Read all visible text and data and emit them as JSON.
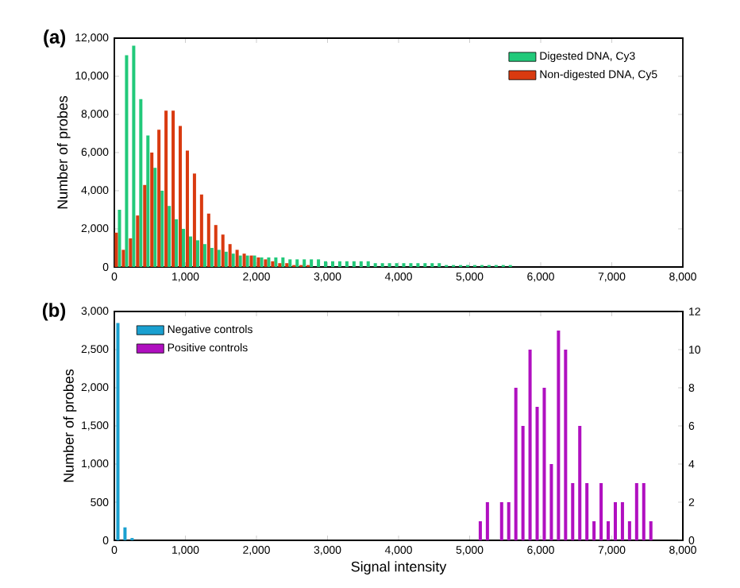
{
  "chart_data": [
    {
      "type": "histogram",
      "title": "(a)",
      "ylabel": "Number of probes",
      "legend": "top right",
      "bins": [
        0,
        100,
        200,
        300,
        400,
        500,
        600,
        700,
        800,
        900,
        1000,
        1100,
        1200,
        1300,
        1400,
        1500,
        1600,
        1700,
        1800,
        1900,
        2000,
        2100,
        2200,
        2300,
        2400,
        2500,
        2600,
        2700,
        2800,
        2900,
        3000,
        3100,
        3200,
        3300,
        3400,
        3500,
        3600,
        3700,
        3800,
        3900,
        4000,
        4100,
        4200,
        4300,
        4400,
        4500,
        4600,
        4700,
        4800,
        4900,
        5000,
        5100,
        5200,
        5300,
        5400,
        5500,
        5600,
        5700,
        5800,
        5900,
        6000,
        6100,
        6200,
        6300,
        6400,
        6500,
        6600,
        6700,
        6800,
        6900,
        7000,
        7100,
        7200,
        7300,
        7400,
        7500,
        7600,
        7700,
        7800,
        7900,
        8000
      ],
      "series": [
        {
          "name": "Digested DNA, Cy3",
          "color": "#22c97a",
          "values": [
            3000,
            11100,
            11600,
            8800,
            6900,
            5200,
            4000,
            3200,
            2500,
            2000,
            1600,
            1400,
            1200,
            1000,
            900,
            800,
            700,
            600,
            600,
            600,
            500,
            500,
            500,
            500,
            400,
            400,
            400,
            400,
            400,
            300,
            300,
            300,
            300,
            300,
            300,
            300,
            200,
            200,
            200,
            200,
            200,
            200,
            200,
            200,
            200,
            200,
            100,
            100,
            100,
            100,
            100,
            100,
            100,
            100,
            100,
            100,
            0,
            0,
            0,
            0,
            0,
            0,
            0,
            0,
            0,
            0,
            0,
            0,
            0,
            0,
            0,
            0,
            0,
            0,
            0,
            0,
            0,
            0,
            0,
            0
          ]
        },
        {
          "name": "Non-digested DNA, Cy5",
          "color": "#d93a10",
          "values": [
            1800,
            900,
            1500,
            2700,
            4300,
            6000,
            7200,
            8200,
            8200,
            7400,
            6100,
            4900,
            3800,
            2800,
            2200,
            1700,
            1200,
            900,
            700,
            600,
            500,
            400,
            300,
            200,
            200,
            100,
            100,
            100,
            0,
            0,
            0,
            0,
            0,
            0,
            0,
            0,
            0,
            0,
            0,
            0,
            0,
            0,
            0,
            0,
            0,
            0,
            0,
            0,
            0,
            0,
            0,
            0,
            0,
            0,
            0,
            0,
            0,
            0,
            0,
            0,
            0,
            0,
            0,
            0,
            0,
            0,
            0,
            0,
            0,
            0,
            0,
            0,
            0,
            0,
            0,
            0,
            0,
            0,
            0,
            0
          ]
        }
      ],
      "xlim": [
        0,
        8000
      ],
      "xticks": [
        0,
        {
          "value": 1000,
          "label": "1,000"
        },
        {
          "value": 2000,
          "label": "2,000"
        },
        {
          "value": 3000,
          "label": "3,000"
        },
        {
          "value": 4000,
          "label": "4,000"
        },
        {
          "value": 5000,
          "label": "5,000"
        },
        {
          "value": 6000,
          "label": "6,000"
        },
        {
          "value": 7000,
          "label": "7,000"
        },
        {
          "value": 8000,
          "label": "8,000"
        }
      ],
      "ylim": [
        0,
        12000
      ],
      "yticks": [
        0,
        {
          "value": 2000,
          "label": "2,000"
        },
        {
          "value": 4000,
          "label": "4,000"
        },
        {
          "value": 6000,
          "label": "6,000"
        },
        {
          "value": 8000,
          "label": "8,000"
        },
        {
          "value": 10000,
          "label": "10,000"
        },
        {
          "value": 12000,
          "label": "12,000"
        }
      ]
    },
    {
      "type": "histogram",
      "title": "(b)",
      "xlabel": "Signal intensity",
      "ylabel": "Number of probes",
      "legend": "top left",
      "bins": [
        0,
        100,
        200,
        300,
        400,
        500,
        600,
        700,
        800,
        900,
        1000,
        1100,
        1200,
        1300,
        1400,
        1500,
        1600,
        1700,
        1800,
        1900,
        2000,
        2100,
        2200,
        2300,
        2400,
        2500,
        2600,
        2700,
        2800,
        2900,
        3000,
        3100,
        3200,
        3300,
        3400,
        3500,
        3600,
        3700,
        3800,
        3900,
        4000,
        4100,
        4200,
        4300,
        4400,
        4500,
        4600,
        4700,
        4800,
        4900,
        5000,
        5100,
        5200,
        5300,
        5400,
        5500,
        5600,
        5700,
        5800,
        5900,
        6000,
        6100,
        6200,
        6300,
        6400,
        6500,
        6600,
        6700,
        6800,
        6900,
        7000,
        7100,
        7200,
        7300,
        7400,
        7500,
        7600,
        7700,
        7800,
        7900,
        8000
      ],
      "series": [
        {
          "name": "Negative controls",
          "color": "#1aa0d0",
          "values": [
            2850,
            170,
            30,
            0,
            0,
            0,
            0,
            0,
            0,
            0,
            0,
            0,
            0,
            0,
            0,
            0,
            0,
            0,
            0,
            0,
            0,
            0,
            0,
            0,
            0,
            0,
            0,
            0,
            0,
            0,
            0,
            0,
            0,
            0,
            0,
            0,
            0,
            0,
            0,
            0,
            0,
            0,
            0,
            0,
            0,
            0,
            0,
            0,
            0,
            0,
            0,
            0,
            0,
            0,
            0,
            0,
            0,
            0,
            0,
            0,
            0,
            0,
            0,
            0,
            0,
            0,
            0,
            0,
            0,
            0,
            0,
            0,
            0,
            0,
            0,
            0,
            0,
            0,
            0,
            0
          ]
        },
        {
          "name": "Positive controls",
          "color": "#b010c0",
          "axis": "y2",
          "values": [
            0,
            0,
            0,
            0,
            0,
            0,
            0,
            0,
            0,
            0,
            0,
            0,
            0,
            0,
            0,
            0,
            0,
            0,
            0,
            0,
            0,
            0,
            0,
            0,
            0,
            0,
            0,
            0,
            0,
            0,
            0,
            0,
            0,
            0,
            0,
            0,
            0,
            0,
            0,
            0,
            0,
            0,
            0,
            0,
            0,
            0,
            0,
            0,
            0,
            0,
            0,
            1,
            2,
            0,
            2,
            2,
            8,
            6,
            10,
            7,
            8,
            4,
            11,
            10,
            3,
            6,
            3,
            1,
            3,
            1,
            2,
            2,
            1,
            3,
            3,
            1,
            0,
            0,
            0,
            0
          ]
        }
      ],
      "xlim": [
        0,
        8000
      ],
      "xticks": [
        0,
        {
          "value": 1000,
          "label": "1,000"
        },
        {
          "value": 2000,
          "label": "2,000"
        },
        {
          "value": 3000,
          "label": "3,000"
        },
        {
          "value": 4000,
          "label": "4,000"
        },
        {
          "value": 5000,
          "label": "5,000"
        },
        {
          "value": 6000,
          "label": "6,000"
        },
        {
          "value": 7000,
          "label": "7,000"
        },
        {
          "value": 8000,
          "label": "8,000"
        }
      ],
      "ylim": [
        0,
        3000
      ],
      "yticks": [
        0,
        500,
        {
          "value": 1000,
          "label": "1,000"
        },
        {
          "value": 1500,
          "label": "1,500"
        },
        {
          "value": 2000,
          "label": "2,000"
        },
        {
          "value": 2500,
          "label": "2,500"
        },
        {
          "value": 3000,
          "label": "3,000"
        }
      ],
      "y2lim": [
        0,
        12
      ],
      "y2ticks": [
        0,
        2,
        4,
        6,
        8,
        10,
        12
      ]
    }
  ]
}
